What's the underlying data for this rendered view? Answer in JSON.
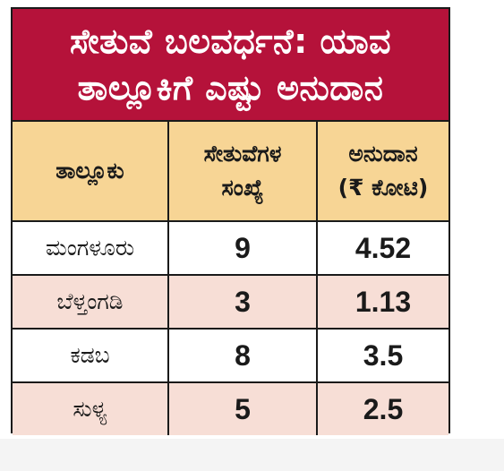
{
  "title": {
    "line1": "ಸೇತುವೆ ಬಲವರ್ಧನೆ: ಯಾವ",
    "line2": "ತಾಲ್ಲೂಕಿಗೆ ಎಷ್ಟು ಅನುದಾನ"
  },
  "table": {
    "headers": {
      "taluk": "ತಾಲ್ಲೂಕು",
      "bridges_line1": "ಸೇತುವೆಗಳ",
      "bridges_line2": "ಸಂಖ್ಯೆ",
      "grant_line1": "ಅನುದಾನ",
      "grant_line2": "(₹ ಕೋಟಿ)"
    },
    "rows": [
      {
        "taluk": "ಮಂಗಳೂರು",
        "bridges": "9",
        "grant": "4.52"
      },
      {
        "taluk": "ಬೆಳ್ತಂಗಡಿ",
        "bridges": "3",
        "grant": "1.13"
      },
      {
        "taluk": "ಕಡಬ",
        "bridges": "8",
        "grant": "3.5"
      },
      {
        "taluk": "ಸುಳ್ಯ",
        "bridges": "5",
        "grant": "2.5"
      }
    ]
  },
  "colors": {
    "title_background": "#b5123a",
    "header_background": "#f7d595",
    "alternate_row": "#f7ded6",
    "border": "#1a1a1a"
  }
}
